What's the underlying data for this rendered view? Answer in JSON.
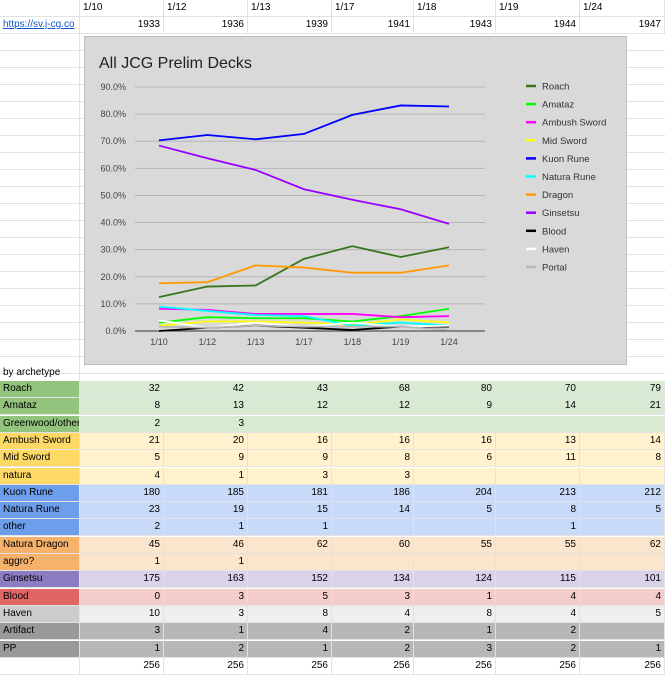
{
  "header": {
    "dates": [
      "1/10",
      "1/12",
      "1/13",
      "1/17",
      "1/18",
      "1/19",
      "1/24"
    ],
    "totals_top": [
      1933,
      1936,
      1939,
      1941,
      1943,
      1944,
      1947
    ],
    "link_text": "https://sv.j-cg.co"
  },
  "table": {
    "section_label": "by archetype",
    "rows": [
      {
        "label": "Roach",
        "bg": "#93c47d",
        "cell_bg": "#d9ead3",
        "values": [
          "32",
          "42",
          "43",
          "68",
          "80",
          "70",
          "79"
        ]
      },
      {
        "label": "Amataz",
        "bg": "#93c47d",
        "cell_bg": "#d9ead3",
        "values": [
          "8",
          "13",
          "12",
          "12",
          "9",
          "14",
          "21"
        ]
      },
      {
        "label": "Greenwood/other",
        "bg": "#93c47d",
        "cell_bg": "#d9ead3",
        "values": [
          "2",
          "3",
          "",
          "",
          "",
          "",
          ""
        ]
      },
      {
        "label": "Ambush Sword",
        "bg": "#ffd966",
        "cell_bg": "#fff2cc",
        "values": [
          "21",
          "20",
          "16",
          "16",
          "16",
          "13",
          "14"
        ]
      },
      {
        "label": "Mid Sword",
        "bg": "#ffd966",
        "cell_bg": "#fff2cc",
        "values": [
          "5",
          "9",
          "9",
          "8",
          "6",
          "11",
          "8"
        ]
      },
      {
        "label": "natura",
        "bg": "#ffd966",
        "cell_bg": "#fff2cc",
        "values": [
          "4",
          "1",
          "3",
          "3",
          "",
          "",
          ""
        ]
      },
      {
        "label": "Kuon Rune",
        "bg": "#6d9eeb",
        "cell_bg": "#c9daf8",
        "values": [
          "180",
          "185",
          "181",
          "186",
          "204",
          "213",
          "212"
        ]
      },
      {
        "label": "Natura Rune",
        "bg": "#6d9eeb",
        "cell_bg": "#c9daf8",
        "values": [
          "23",
          "19",
          "15",
          "14",
          "5",
          "8",
          "5"
        ]
      },
      {
        "label": "other",
        "bg": "#6d9eeb",
        "cell_bg": "#c9daf8",
        "values": [
          "2",
          "1",
          "1",
          "",
          "",
          "1",
          ""
        ]
      },
      {
        "label": "Natura Dragon",
        "bg": "#f6b26b",
        "cell_bg": "#fce5cd",
        "values": [
          "45",
          "46",
          "62",
          "60",
          "55",
          "55",
          "62"
        ]
      },
      {
        "label": "aggro?",
        "bg": "#f6b26b",
        "cell_bg": "#fce5cd",
        "values": [
          "1",
          "1",
          "",
          "",
          "",
          "",
          ""
        ]
      },
      {
        "label": "Ginsetsu",
        "bg": "#8e7cc3",
        "cell_bg": "#d9d2e9",
        "values": [
          "175",
          "163",
          "152",
          "134",
          "124",
          "115",
          "101"
        ]
      },
      {
        "label": "Blood",
        "bg": "#e06666",
        "cell_bg": "#f4cccc",
        "values": [
          "0",
          "3",
          "5",
          "3",
          "1",
          "4",
          "4"
        ]
      },
      {
        "label": "Haven",
        "bg": "#cccccc",
        "cell_bg": "#efefef",
        "values": [
          "10",
          "3",
          "8",
          "4",
          "8",
          "4",
          "5"
        ]
      },
      {
        "label": "Artifact",
        "bg": "#999999",
        "cell_bg": "#b7b7b7",
        "values": [
          "3",
          "1",
          "4",
          "2",
          "1",
          "2",
          ""
        ]
      },
      {
        "label": "PP",
        "bg": "#999999",
        "cell_bg": "#b7b7b7",
        "values": [
          "1",
          "2",
          "1",
          "2",
          "3",
          "2",
          "1"
        ]
      }
    ],
    "totals_bottom": [
      "256",
      "256",
      "256",
      "256",
      "256",
      "256",
      "256"
    ]
  },
  "chart_data": {
    "type": "line",
    "title": "All JCG Prelim Decks",
    "categories": [
      "1/10",
      "1/12",
      "1/13",
      "1/17",
      "1/18",
      "1/19",
      "1/24"
    ],
    "y_ticks": [
      "0.0%",
      "10.0%",
      "20.0%",
      "30.0%",
      "40.0%",
      "50.0%",
      "60.0%",
      "70.0%",
      "80.0%",
      "90.0%"
    ],
    "ylim": [
      0,
      90
    ],
    "grid": true,
    "legend_position": "right",
    "series": [
      {
        "name": "Roach",
        "color": "#38761d",
        "values": [
          12.5,
          16.4,
          16.8,
          26.6,
          31.3,
          27.3,
          30.9
        ]
      },
      {
        "name": "Amataz",
        "color": "#00ff00",
        "values": [
          3.1,
          5.1,
          4.7,
          4.7,
          3.5,
          5.5,
          8.2
        ]
      },
      {
        "name": "Ambush Sword",
        "color": "#ff00ff",
        "values": [
          8.2,
          7.8,
          6.3,
          6.3,
          6.3,
          5.1,
          5.5
        ]
      },
      {
        "name": "Mid Sword",
        "color": "#ffff00",
        "values": [
          2.0,
          3.5,
          3.5,
          3.1,
          2.3,
          4.3,
          3.1
        ]
      },
      {
        "name": "Kuon Rune",
        "color": "#0000ff",
        "values": [
          70.3,
          72.3,
          70.7,
          72.7,
          79.7,
          83.2,
          82.8
        ]
      },
      {
        "name": "Natura Rune",
        "color": "#00ffff",
        "values": [
          9.0,
          7.4,
          5.9,
          5.5,
          2.0,
          3.1,
          2.0
        ]
      },
      {
        "name": "Dragon",
        "color": "#ff9900",
        "values": [
          17.6,
          18.0,
          24.2,
          23.4,
          21.5,
          21.5,
          24.2
        ]
      },
      {
        "name": "Ginsetsu",
        "color": "#9900ff",
        "values": [
          68.4,
          63.7,
          59.4,
          52.3,
          48.4,
          44.9,
          39.5
        ]
      },
      {
        "name": "Blood",
        "color": "#000000",
        "values": [
          0,
          1.2,
          2.0,
          1.2,
          0.4,
          1.6,
          1.6
        ]
      },
      {
        "name": "Haven",
        "color": "#ffffff",
        "values": [
          3.9,
          1.2,
          3.1,
          1.6,
          3.1,
          1.6,
          2.0
        ]
      },
      {
        "name": "Portal",
        "color": "#b7b7b7",
        "values": [
          1.6,
          1.2,
          2.0,
          1.6,
          1.6,
          1.6,
          0.4
        ]
      }
    ]
  }
}
